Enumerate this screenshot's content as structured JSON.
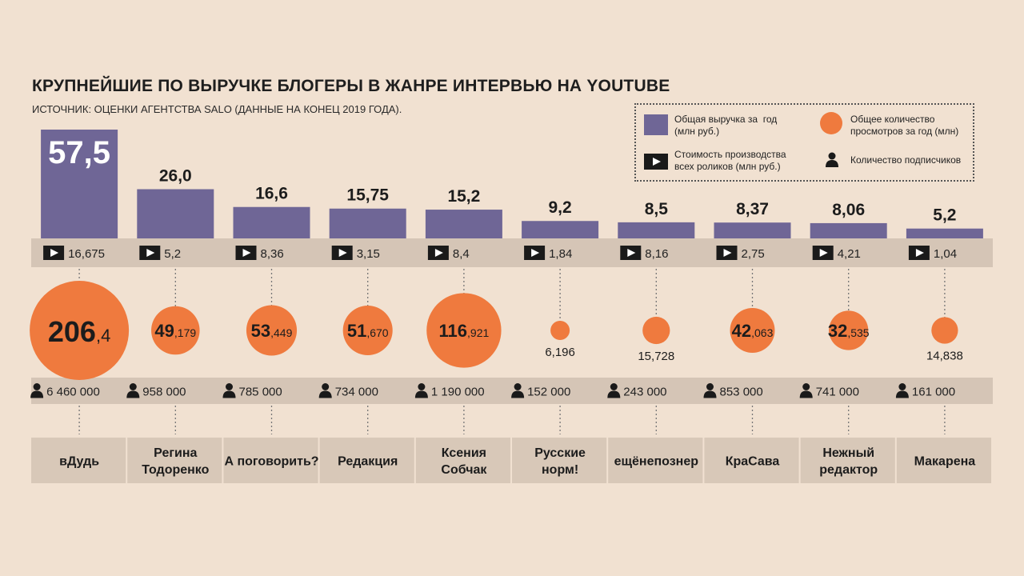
{
  "title": "КРУПНЕЙШИЕ ПО ВЫРУЧКЕ БЛОГЕРЫ В ЖАНРЕ ИНТЕРВЬЮ НА YOUTUBE",
  "subtitle": "ИСТОЧНИК: ОЦЕНКИ АГЕНТСТВА SALO (ДАННЫЕ НА КОНЕЦ 2019 ГОДА).",
  "legend": {
    "revenue": "Общая выручка за  год\n(млн руб.)",
    "cost": "Стоимость производства\nвсех роликов (млн руб.)",
    "views": "Общее количество\nпросмотров за год (млн)",
    "subscribers": "Количество подписчиков"
  },
  "colors": {
    "background": "#f1e1d1",
    "bar": "#6f6696",
    "circle": "#ef7a3e",
    "band": "#d5c5b6",
    "name_band": "#d8c8b8"
  },
  "icons": {
    "cost": "play-icon",
    "subscribers": "person-icon"
  },
  "chart_data": {
    "type": "bar",
    "categories": [
      "вДудь",
      "Регина\nТодоренко",
      "А поговорить?",
      "Редакция",
      "Ксения\nСобчак",
      "Русские\nнорм!",
      "ещёнепознер",
      "КраСава",
      "Нежный\nредактор",
      "Макарена"
    ],
    "series": [
      {
        "name": "Общая выручка за  год (млн руб.)",
        "values": [
          57.5,
          26.0,
          16.6,
          15.75,
          15.2,
          9.2,
          8.5,
          8.37,
          8.06,
          5.2
        ],
        "labels": [
          "57,5",
          "26,0",
          "16,6",
          "15,75",
          "15,2",
          "9,2",
          "8,5",
          "8,37",
          "8,06",
          "5,2"
        ]
      },
      {
        "name": "Стоимость производства всех роликов (млн руб.)",
        "values": [
          16.675,
          5.2,
          8.36,
          3.15,
          8.4,
          1.84,
          8.16,
          2.75,
          4.21,
          1.04
        ],
        "labels": [
          "16,675",
          "5,2",
          "8,36",
          "3,15",
          "8,4",
          "1,84",
          "8,16",
          "2,75",
          "4,21",
          "1,04"
        ]
      },
      {
        "name": "Общее количество просмотров за год (млн)",
        "values": [
          206.4,
          49.179,
          53.449,
          51.67,
          116.921,
          6.196,
          15.728,
          42.063,
          32.535,
          14.838
        ],
        "label_big": [
          "206",
          "49",
          "53",
          "51",
          "116",
          "",
          "",
          "42",
          "32",
          ""
        ],
        "label_small": [
          ",4",
          ",179",
          ",449",
          ",670",
          ",921",
          "6,196",
          "15,728",
          ",063",
          ",535",
          "14,838"
        ]
      },
      {
        "name": "Количество подписчиков",
        "values": [
          6460000,
          958000,
          785000,
          734000,
          1190000,
          152000,
          243000,
          853000,
          741000,
          161000
        ],
        "labels": [
          "6 460 000",
          "958 000",
          "785 000",
          "734 000",
          "1 190 000",
          "152 000",
          "243 000",
          "853 000",
          "741 000",
          "161 000"
        ]
      }
    ]
  }
}
